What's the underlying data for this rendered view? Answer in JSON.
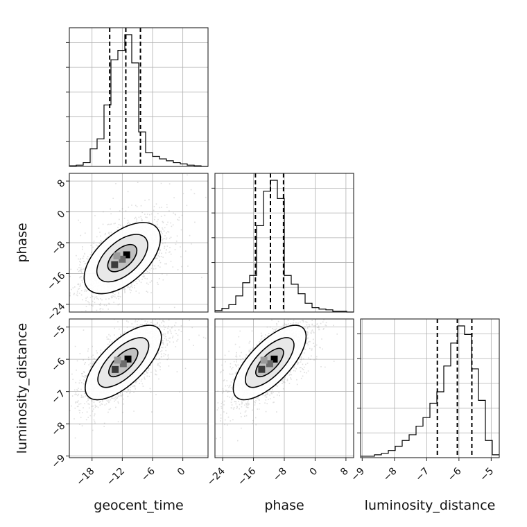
{
  "chart_data": {
    "type": "corner",
    "parameters": [
      "geocent_time",
      "phase",
      "luminosity_distance"
    ],
    "axes": {
      "geocent_time": {
        "label": "geocent_time",
        "range": [
          -22.5,
          5.0
        ],
        "ticks": [
          -18,
          -12,
          -6,
          0
        ]
      },
      "phase": {
        "label": "phase",
        "range": [
          -26.0,
          10.0
        ],
        "ticks": [
          -24,
          -16,
          -8,
          0,
          8
        ]
      },
      "luminosity_distance": {
        "label": "luminosity_distance",
        "range": [
          -9.05,
          -4.75
        ],
        "ticks": [
          -9,
          -8,
          -7,
          -6,
          -5
        ]
      }
    },
    "grid": true,
    "histograms": [
      {
        "parameter": "geocent_time",
        "bin_edges": [
          -22.5,
          -21.125,
          -19.75,
          -18.375,
          -17.0,
          -15.625,
          -14.25,
          -12.875,
          -11.5,
          -10.125,
          -8.75,
          -7.375,
          -6.0,
          -4.625,
          -3.25,
          -1.875,
          -0.5,
          0.875,
          2.25,
          3.625,
          5.0
        ],
        "counts": [
          1,
          2,
          6,
          28,
          44,
          98,
          170,
          185,
          210,
          165,
          55,
          22,
          16,
          12,
          9,
          6,
          4,
          2,
          1,
          0
        ],
        "quantiles": [
          -14.5,
          -11.3,
          -8.4
        ]
      },
      {
        "parameter": "phase",
        "bin_edges": [
          -26.0,
          -24.2,
          -22.4,
          -20.6,
          -18.8,
          -17.0,
          -15.2,
          -13.4,
          -11.6,
          -9.8,
          -8.0,
          -6.2,
          -4.4,
          -2.6,
          -0.8,
          1.0,
          2.8,
          4.6,
          6.4,
          8.2,
          10.0
        ],
        "counts": [
          2,
          5,
          10,
          22,
          40,
          50,
          118,
          165,
          180,
          155,
          50,
          38,
          25,
          12,
          6,
          4,
          3,
          1,
          1,
          0
        ],
        "quantiles": [
          -15.5,
          -11.6,
          -8.2
        ]
      },
      {
        "parameter": "luminosity_distance",
        "bin_edges": [
          -9.05,
          -8.835,
          -8.62,
          -8.405,
          -8.19,
          -7.975,
          -7.76,
          -7.545,
          -7.33,
          -7.115,
          -6.9,
          -6.685,
          -6.47,
          -6.255,
          -6.04,
          -5.825,
          -5.61,
          -5.395,
          -5.18,
          -4.965,
          -4.75
        ],
        "counts": [
          1,
          1,
          2,
          3,
          5,
          8,
          12,
          16,
          22,
          28,
          38,
          46,
          64,
          80,
          92,
          86,
          62,
          40,
          12,
          2
        ],
        "quantiles": [
          -6.67,
          -6.05,
          -5.6
        ]
      }
    ],
    "pairs": [
      {
        "x": "geocent_time",
        "y": "phase",
        "center": [
          -12.0,
          -12.0
        ],
        "spread": [
          3.6,
          4.4
        ],
        "rho": 0.55,
        "n_points": 2800
      },
      {
        "x": "geocent_time",
        "y": "luminosity_distance",
        "center": [
          -11.8,
          -6.1
        ],
        "spread": [
          3.6,
          0.55
        ],
        "rho": 0.68,
        "n_points": 2800
      },
      {
        "x": "phase",
        "y": "luminosity_distance",
        "center": [
          -11.8,
          -6.1
        ],
        "spread": [
          4.5,
          0.55
        ],
        "rho": 0.7,
        "n_points": 2800
      }
    ],
    "colors": {
      "hist": "#000000",
      "points": "#8c8c8c",
      "contour": "#000000",
      "density_max": "#000000"
    }
  }
}
